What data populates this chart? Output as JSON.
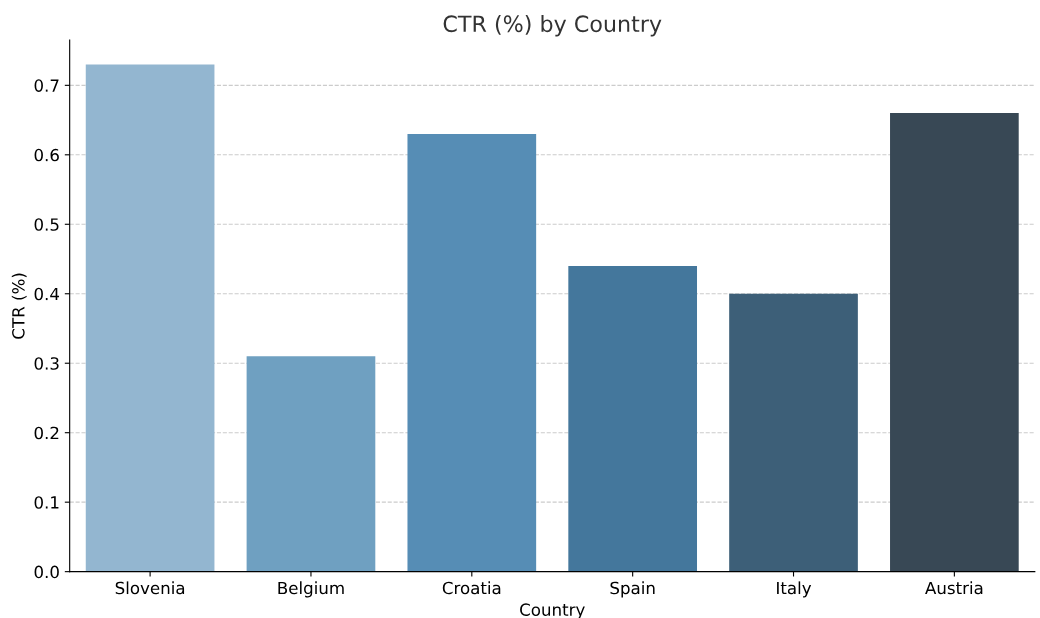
{
  "chart_data": {
    "type": "bar",
    "title": "CTR (%) by Country",
    "xlabel": "Country",
    "ylabel": "CTR (%)",
    "categories": [
      "Slovenia",
      "Belgium",
      "Croatia",
      "Spain",
      "Italy",
      "Austria"
    ],
    "values": [
      0.73,
      0.31,
      0.63,
      0.44,
      0.4,
      0.66
    ],
    "colors": [
      "#93b6d0",
      "#6fa0c1",
      "#568db5",
      "#44779c",
      "#3d5f78",
      "#384855"
    ],
    "ylim": [
      0,
      0.765
    ],
    "yticks": [
      {
        "value": 0,
        "label": "0.0"
      },
      0.1,
      0.2,
      0.3,
      0.4,
      0.5,
      0.6,
      0.7
    ],
    "grid": "y",
    "legend": false
  }
}
